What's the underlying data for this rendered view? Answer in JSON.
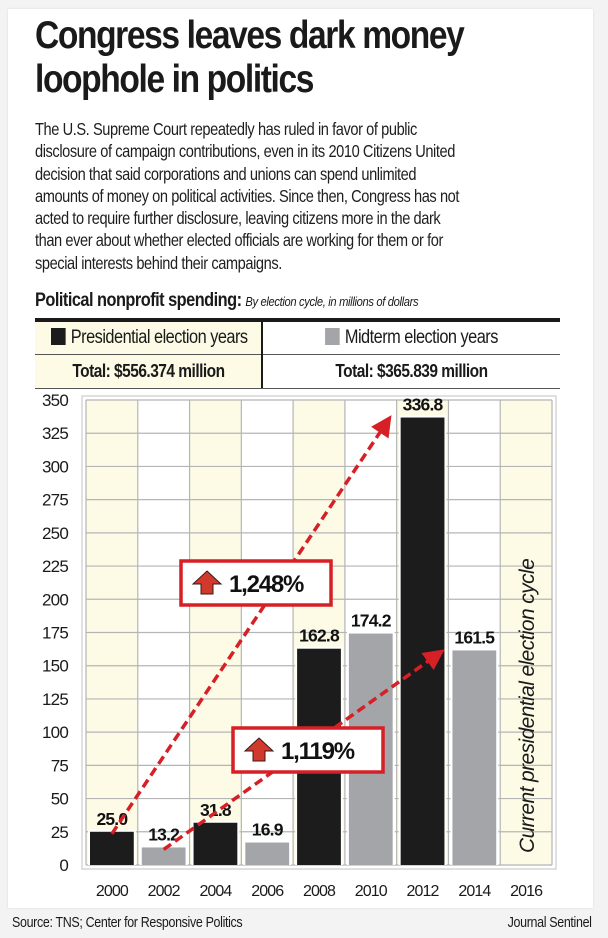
{
  "headline": {
    "line1": "Congress leaves dark money",
    "line2": "loophole in politics"
  },
  "intro_lines": [
    "The U.S. Supreme Court repeatedly has ruled in favor of public",
    "disclosure of campaign contributions, even in its 2010 Citizens United",
    "decision that said corporations and unions can spend unlimited",
    "amounts of money on political activities. Since then, Congress has not",
    "acted to require further disclosure, leaving citizens more in the dark",
    "than ever about whether elected officials are working for them or for",
    "special interests behind their campaigns."
  ],
  "subhead": {
    "bold": "Political nonprofit spending:",
    "italic": "By election cycle, in millions of dollars"
  },
  "legend": {
    "presidential": {
      "label": "Presidential election years",
      "total": "Total: $556.374 million",
      "color": "#1c1c1c"
    },
    "midterm": {
      "label": "Midterm election years",
      "total": "Total: $365.839 million",
      "color": "#a3a5a8"
    }
  },
  "colors": {
    "presidential_bar": "#1c1c1c",
    "midterm_bar": "#a3a5a8",
    "presidential_column_bg": "#fdfbe6",
    "grid": "#b5b5b5",
    "accent_red": "#d71f26",
    "arrow_fill": "#d0392b"
  },
  "chart_data": {
    "type": "bar",
    "title": "Political nonprofit spending",
    "subtitle": "By election cycle, in millions of dollars",
    "xlabel": "",
    "ylabel": "",
    "categories": [
      "2000",
      "2002",
      "2004",
      "2006",
      "2008",
      "2010",
      "2012",
      "2014",
      "2016"
    ],
    "series": [
      {
        "name": "Presidential election years",
        "values": [
          25.0,
          null,
          31.8,
          null,
          162.8,
          null,
          336.8,
          null,
          null
        ]
      },
      {
        "name": "Midterm election years",
        "values": [
          null,
          13.2,
          null,
          16.9,
          null,
          174.2,
          null,
          161.5,
          null
        ]
      }
    ],
    "bars": [
      {
        "year": "2000",
        "value": 25.0,
        "label": "25.0",
        "type": "presidential"
      },
      {
        "year": "2002",
        "value": 13.2,
        "label": "13.2",
        "type": "midterm"
      },
      {
        "year": "2004",
        "value": 31.8,
        "label": "31.8",
        "type": "presidential"
      },
      {
        "year": "2006",
        "value": 16.9,
        "label": "16.9",
        "type": "midterm"
      },
      {
        "year": "2008",
        "value": 162.8,
        "label": "162.8",
        "type": "presidential"
      },
      {
        "year": "2010",
        "value": 174.2,
        "label": "174.2",
        "type": "midterm"
      },
      {
        "year": "2012",
        "value": 336.8,
        "label": "336.8",
        "type": "presidential"
      },
      {
        "year": "2014",
        "value": 161.5,
        "label": "161.5",
        "type": "midterm"
      }
    ],
    "yticks": [
      0,
      25,
      50,
      75,
      100,
      125,
      150,
      175,
      200,
      225,
      250,
      275,
      300,
      325,
      350
    ],
    "ylim": [
      0,
      350
    ],
    "grid": true,
    "annotations": [
      {
        "text": "1,248%",
        "from_year": "2000",
        "from_value": 25.0,
        "to_year": "2012",
        "to_value": 336.8,
        "direction": "up"
      },
      {
        "text": "1,119%",
        "from_year": "2002",
        "from_value": 13.2,
        "to_year": "2014",
        "to_value": 161.5,
        "direction": "up"
      }
    ],
    "column_note": {
      "year": "2016",
      "text": "Current presidential election cycle"
    }
  },
  "footer": {
    "source": "Source: TNS; Center for Responsive Politics",
    "credit": "Journal Sentinel"
  }
}
